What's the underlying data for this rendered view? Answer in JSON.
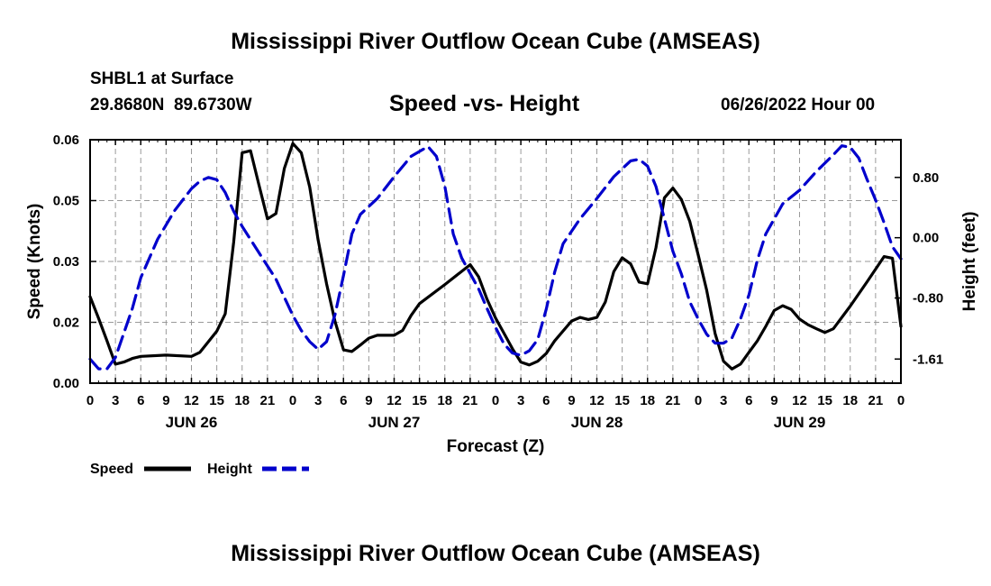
{
  "header": {
    "title": "Mississippi River Outflow Ocean Cube (AMSEAS)",
    "station": "SHBL1 at Surface",
    "coords": "29.8680N  89.6730W",
    "subtitle": "Speed -vs- Height",
    "date": "06/26/2022 Hour 00"
  },
  "footer": {
    "title": "Mississippi River Outflow Ocean Cube (AMSEAS)"
  },
  "chart_data": {
    "type": "line",
    "title": "Speed -vs- Height",
    "xlabel": "Forecast (Z)",
    "ylabel": "Speed (Knots)",
    "y2label": "Height (feet)",
    "xlim": [
      0,
      96
    ],
    "ylim": [
      0,
      0.06
    ],
    "y2lim": [
      -1.93,
      1.3
    ],
    "grid": true,
    "x_ticks": [
      0,
      3,
      6,
      9,
      12,
      15,
      18,
      21,
      24,
      27,
      30,
      33,
      36,
      39,
      42,
      45,
      48,
      51,
      54,
      57,
      60,
      63,
      66,
      69,
      72,
      75,
      78,
      81,
      84,
      87,
      90,
      93,
      96
    ],
    "x_tick_labels": [
      "0",
      "3",
      "6",
      "9",
      "12",
      "15",
      "18",
      "21",
      "0",
      "3",
      "6",
      "9",
      "12",
      "15",
      "18",
      "21",
      "0",
      "3",
      "6",
      "9",
      "12",
      "15",
      "18",
      "21",
      "0",
      "3",
      "6",
      "9",
      "12",
      "15",
      "18",
      "21",
      "0"
    ],
    "day_labels": [
      {
        "x": 12,
        "label": "JUN 26"
      },
      {
        "x": 36,
        "label": "JUN 27"
      },
      {
        "x": 60,
        "label": "JUN 28"
      },
      {
        "x": 84,
        "label": "JUN 29"
      }
    ],
    "y_ticks": [
      0,
      0.015,
      0.03,
      0.045,
      0.06
    ],
    "y_tick_labels": [
      "0.00",
      "0.02",
      "0.03",
      "0.05",
      "0.06"
    ],
    "y2_ticks": [
      0.8,
      0.0,
      -0.8,
      -1.61
    ],
    "y2_tick_labels": [
      "0.80",
      "0.00",
      "-0.80",
      "-1.61"
    ],
    "legend": {
      "position": "bottom-left",
      "entries": [
        {
          "label": "Speed",
          "color": "#000000",
          "dash": "solid"
        },
        {
          "label": "Height",
          "color": "#0000cc",
          "dash": "dashed"
        }
      ]
    },
    "series": [
      {
        "name": "Speed",
        "axis": "left",
        "color": "#000000",
        "points": [
          [
            0,
            0.0213
          ],
          [
            1,
            0.016
          ],
          [
            2,
            0.0104
          ],
          [
            3,
            0.0047
          ],
          [
            4,
            0.0052
          ],
          [
            5,
            0.0061
          ],
          [
            6,
            0.0066
          ],
          [
            9,
            0.0069
          ],
          [
            12,
            0.0066
          ],
          [
            13,
            0.0076
          ],
          [
            15,
            0.0128
          ],
          [
            16,
            0.0171
          ],
          [
            17,
            0.0348
          ],
          [
            18,
            0.0568
          ],
          [
            19,
            0.0573
          ],
          [
            20,
            0.0488
          ],
          [
            21,
            0.0405
          ],
          [
            22,
            0.0418
          ],
          [
            23,
            0.0529
          ],
          [
            24,
            0.0591
          ],
          [
            25,
            0.0568
          ],
          [
            26,
            0.0483
          ],
          [
            27,
            0.0353
          ],
          [
            28,
            0.0245
          ],
          [
            29,
            0.0152
          ],
          [
            30,
            0.0082
          ],
          [
            31,
            0.0078
          ],
          [
            32,
            0.0094
          ],
          [
            33,
            0.0111
          ],
          [
            34,
            0.0118
          ],
          [
            36,
            0.0118
          ],
          [
            37,
            0.013
          ],
          [
            38,
            0.0167
          ],
          [
            39,
            0.0196
          ],
          [
            42,
            0.0243
          ],
          [
            45,
            0.0292
          ],
          [
            46,
            0.0262
          ],
          [
            47,
            0.0207
          ],
          [
            48,
            0.0161
          ],
          [
            49,
            0.0123
          ],
          [
            50,
            0.0085
          ],
          [
            51,
            0.0052
          ],
          [
            52,
            0.0045
          ],
          [
            53,
            0.0054
          ],
          [
            54,
            0.0073
          ],
          [
            55,
            0.0104
          ],
          [
            57,
            0.0153
          ],
          [
            58,
            0.0162
          ],
          [
            59,
            0.0157
          ],
          [
            60,
            0.0162
          ],
          [
            61,
            0.02
          ],
          [
            62,
            0.0275
          ],
          [
            63,
            0.0309
          ],
          [
            64,
            0.0294
          ],
          [
            65,
            0.0249
          ],
          [
            66,
            0.0245
          ],
          [
            67,
            0.0334
          ],
          [
            68,
            0.0457
          ],
          [
            69,
            0.0481
          ],
          [
            70,
            0.0453
          ],
          [
            71,
            0.0399
          ],
          [
            72,
            0.0316
          ],
          [
            73,
            0.0229
          ],
          [
            74,
            0.0122
          ],
          [
            75,
            0.0054
          ],
          [
            76,
            0.0035
          ],
          [
            77,
            0.0047
          ],
          [
            78,
            0.0076
          ],
          [
            79,
            0.0104
          ],
          [
            80,
            0.014
          ],
          [
            81,
            0.0179
          ],
          [
            82,
            0.0191
          ],
          [
            83,
            0.0182
          ],
          [
            84,
            0.0158
          ],
          [
            85,
            0.0144
          ],
          [
            86,
            0.0134
          ],
          [
            87,
            0.0125
          ],
          [
            88,
            0.0134
          ],
          [
            90,
            0.019
          ],
          [
            92,
            0.025
          ],
          [
            94,
            0.0312
          ],
          [
            95,
            0.0308
          ],
          [
            96,
            0.014
          ]
        ]
      },
      {
        "name": "Height",
        "axis": "right",
        "color": "#0000cc",
        "points": [
          [
            0,
            -1.61
          ],
          [
            1,
            -1.74
          ],
          [
            2,
            -1.74
          ],
          [
            3,
            -1.59
          ],
          [
            5,
            -0.94
          ],
          [
            6,
            -0.53
          ],
          [
            8,
            -0.02
          ],
          [
            10,
            0.36
          ],
          [
            12,
            0.65
          ],
          [
            13,
            0.75
          ],
          [
            14,
            0.8
          ],
          [
            15,
            0.77
          ],
          [
            16,
            0.6
          ],
          [
            17,
            0.35
          ],
          [
            18,
            0.15
          ],
          [
            20,
            -0.2
          ],
          [
            22,
            -0.55
          ],
          [
            23,
            -0.79
          ],
          [
            24,
            -1.03
          ],
          [
            25,
            -1.23
          ],
          [
            26,
            -1.38
          ],
          [
            27,
            -1.48
          ],
          [
            28,
            -1.38
          ],
          [
            29,
            -1.02
          ],
          [
            30,
            -0.5
          ],
          [
            31,
            0.05
          ],
          [
            32,
            0.31
          ],
          [
            34,
            0.52
          ],
          [
            36,
            0.81
          ],
          [
            38,
            1.08
          ],
          [
            40,
            1.21
          ],
          [
            41,
            1.08
          ],
          [
            42,
            0.68
          ],
          [
            43,
            0.05
          ],
          [
            44,
            -0.27
          ],
          [
            46,
            -0.68
          ],
          [
            47,
            -0.94
          ],
          [
            48,
            -1.19
          ],
          [
            49,
            -1.41
          ],
          [
            50,
            -1.53
          ],
          [
            51,
            -1.56
          ],
          [
            52,
            -1.5
          ],
          [
            53,
            -1.35
          ],
          [
            54,
            -0.95
          ],
          [
            55,
            -0.46
          ],
          [
            56,
            -0.08
          ],
          [
            58,
            0.25
          ],
          [
            60,
            0.52
          ],
          [
            62,
            0.81
          ],
          [
            64,
            1.02
          ],
          [
            65,
            1.04
          ],
          [
            66,
            0.95
          ],
          [
            67,
            0.68
          ],
          [
            68,
            0.25
          ],
          [
            69,
            -0.18
          ],
          [
            70,
            -0.48
          ],
          [
            71,
            -0.85
          ],
          [
            72,
            -1.08
          ],
          [
            73,
            -1.28
          ],
          [
            74,
            -1.4
          ],
          [
            75,
            -1.4
          ],
          [
            76,
            -1.33
          ],
          [
            77,
            -1.08
          ],
          [
            78,
            -0.76
          ],
          [
            79,
            -0.3
          ],
          [
            80,
            0.05
          ],
          [
            81,
            0.25
          ],
          [
            82,
            0.45
          ],
          [
            84,
            0.63
          ],
          [
            86,
            0.88
          ],
          [
            88,
            1.1
          ],
          [
            89,
            1.22
          ],
          [
            90,
            1.2
          ],
          [
            91,
            1.06
          ],
          [
            92,
            0.77
          ],
          [
            93,
            0.5
          ],
          [
            94,
            0.2
          ],
          [
            95,
            -0.12
          ],
          [
            96,
            -0.28
          ]
        ]
      }
    ]
  }
}
